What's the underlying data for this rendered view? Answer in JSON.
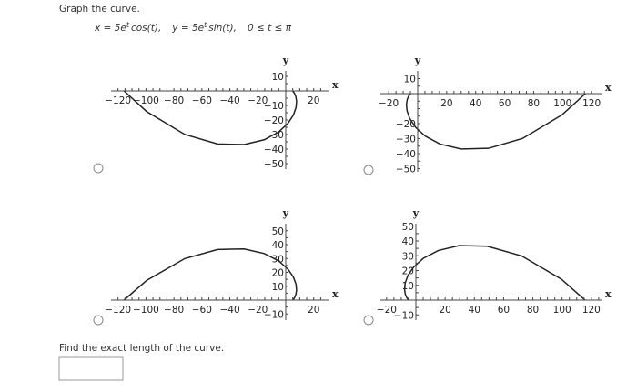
{
  "prompt": "Graph the curve.",
  "equation": {
    "x_lhs": "x = 5e",
    "x_exp": "t",
    "x_rhs": "cos(t),",
    "y_lhs": "y = 5e",
    "y_exp": "t",
    "y_rhs": "sin(t),",
    "domain": "0 ≤ t ≤ π"
  },
  "graphs": [
    {
      "x_axis_label": "x",
      "y_axis_label": "y",
      "x_tick_labels": [
        "−120",
        "−100",
        "−80",
        "−60",
        "−40",
        "−20",
        "20"
      ],
      "y_tick_labels": [
        "10",
        "−10",
        "−20",
        "−30",
        "−40",
        "−50"
      ]
    },
    {
      "x_axis_label": "x",
      "y_axis_label": "y",
      "x_tick_labels": [
        "−20",
        "20",
        "40",
        "60",
        "80",
        "100",
        "120"
      ],
      "y_tick_labels": [
        "10",
        "−20",
        "−30",
        "−40",
        "−50"
      ]
    },
    {
      "x_axis_label": "x",
      "y_axis_label": "y",
      "x_tick_labels": [
        "−120",
        "−100",
        "−80",
        "−60",
        "−40",
        "−20",
        "20"
      ],
      "y_tick_labels": [
        "50",
        "40",
        "30",
        "20",
        "10",
        "−10"
      ]
    },
    {
      "x_axis_label": "x",
      "y_axis_label": "y",
      "x_tick_labels": [
        "−20",
        "20",
        "40",
        "60",
        "80",
        "100",
        "120"
      ],
      "y_tick_labels": [
        "50",
        "40",
        "30",
        "20",
        "10",
        "−10"
      ]
    }
  ],
  "question": "Find the exact length of the curve."
}
